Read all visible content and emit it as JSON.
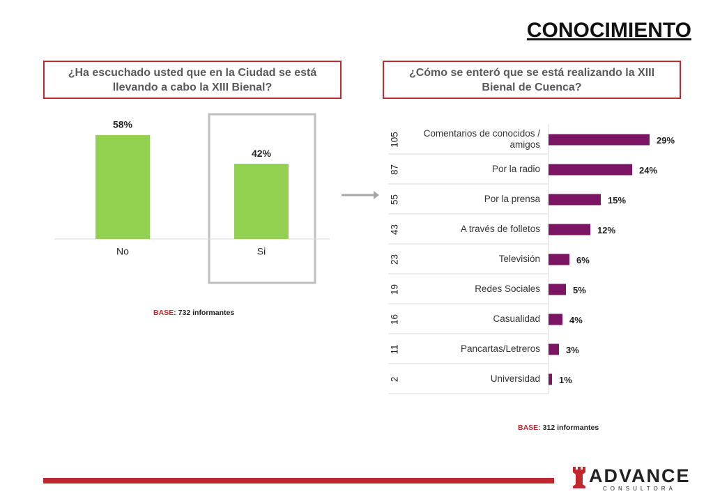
{
  "page": {
    "title": "CONOCIMIENTO",
    "logo": "ADVANCE",
    "logo_sub": "CONSULTORA"
  },
  "chart_data": [
    {
      "type": "bar",
      "title": "¿Ha escuchado usted que en la Ciudad se está llevando a cabo la XIII Bienal?",
      "categories": [
        "No",
        "Si"
      ],
      "values": [
        58,
        42
      ],
      "value_labels": [
        "58%",
        "42%"
      ],
      "color": "#92d050",
      "base": {
        "label": "BASE:",
        "text": "732 informantes"
      }
    },
    {
      "type": "hbar",
      "title": "¿Cómo se enteró que se está realizando la XIII Bienal de Cuenca?",
      "categories": [
        "Comentarios de conocidos / amigos",
        "Por la radio",
        "Por la prensa",
        "A través de folletos",
        "Televisión",
        "Redes Sociales",
        "Casualidad",
        "Pancartas/Letreros",
        "Universidad"
      ],
      "counts": [
        105,
        87,
        55,
        43,
        23,
        19,
        16,
        11,
        2
      ],
      "values": [
        29,
        24,
        15,
        12,
        6,
        5,
        4,
        3,
        1
      ],
      "value_labels": [
        "29%",
        "24%",
        "15%",
        "12%",
        "6%",
        "5%",
        "4%",
        "3%",
        "1%"
      ],
      "color": "#7b1463",
      "base": {
        "label": "BASE:",
        "text": "312 informantes"
      }
    }
  ]
}
